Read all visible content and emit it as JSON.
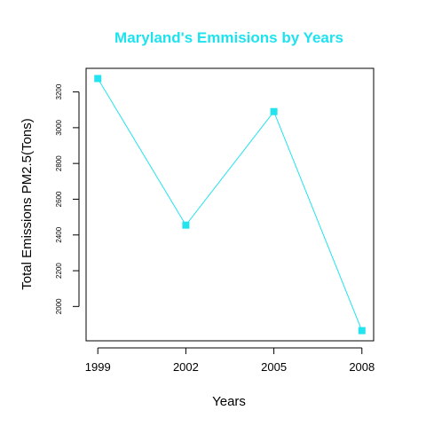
{
  "chart_data": {
    "type": "line",
    "title": "Maryland's Emmisions by Years",
    "xlabel": "Years",
    "ylabel": "Total Emissions PM2.5(Tons)",
    "categories": [
      "1999",
      "2002",
      "2005",
      "2008"
    ],
    "x": [
      1999,
      2002,
      2005,
      2008
    ],
    "series": [
      {
        "values": [
          3275,
          2455,
          3090,
          1865
        ]
      }
    ],
    "xticks": [
      "1999",
      "2002",
      "2005",
      "2008"
    ],
    "yticks": [
      "2000",
      "2200",
      "2400",
      "2600",
      "2800",
      "3000",
      "3200"
    ],
    "ylim": [
      1808,
      3332
    ],
    "xlim": [
      1998.6,
      2008.4
    ],
    "grid": false,
    "legend": "none",
    "marker": "square",
    "colors": {
      "title": "#1ee3ee",
      "series": "#22e3ee",
      "axis": "#000000"
    }
  }
}
